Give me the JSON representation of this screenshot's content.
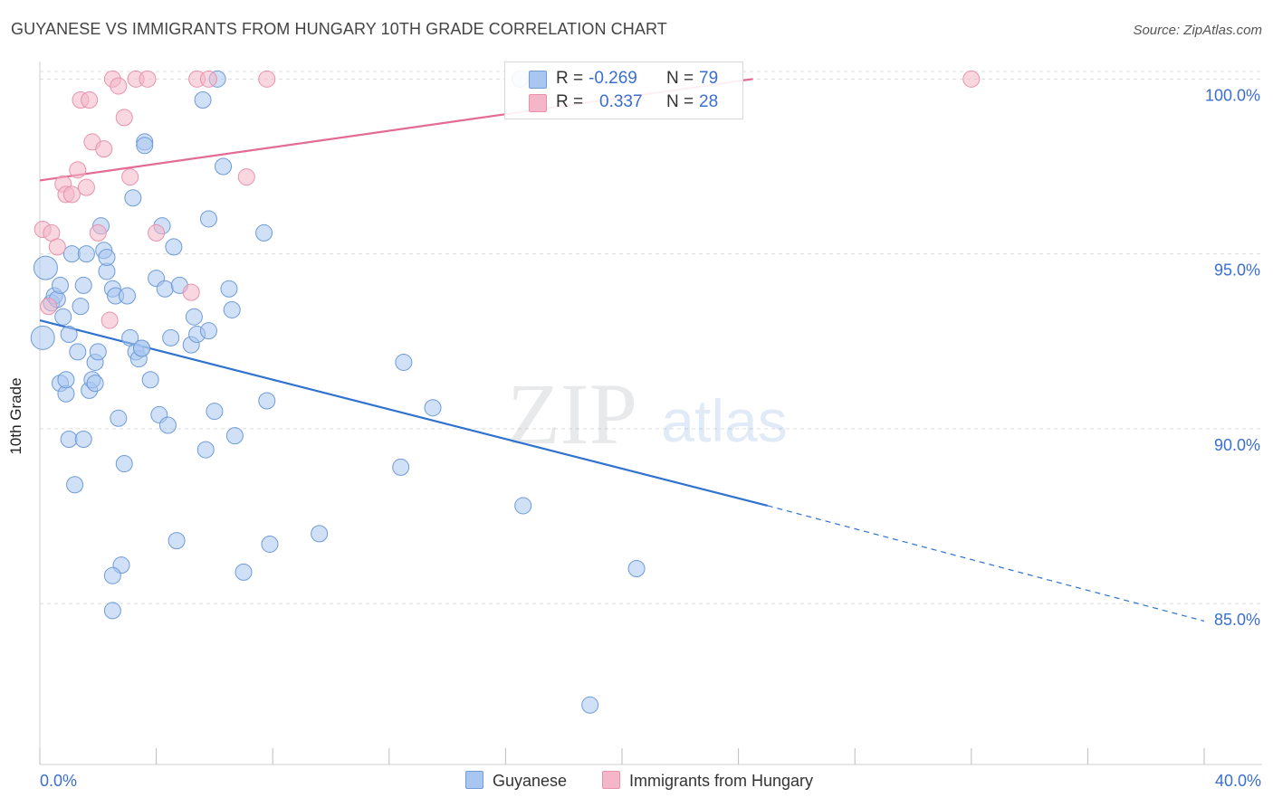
{
  "header": {
    "title": "GUYANESE VS IMMIGRANTS FROM HUNGARY 10TH GRADE CORRELATION CHART",
    "source": "Source: ZipAtlas.com"
  },
  "watermark": {
    "zip": "ZIP",
    "atlas": "atlas"
  },
  "legend": {
    "rows": [
      {
        "r_label": "R =",
        "r_value": "-0.269",
        "n_label": "N =",
        "n_value": "79",
        "color": "#a9c6f0"
      },
      {
        "r_label": "R =",
        "r_value": "0.337",
        "n_label": "N =",
        "n_value": "28",
        "color": "#f4b6c8"
      }
    ]
  },
  "bottom_legend": {
    "items": [
      {
        "label": "Guyanese",
        "color": "#a9c6f0"
      },
      {
        "label": "Immigrants from Hungary",
        "color": "#f4b6c8"
      }
    ]
  },
  "chart_data": {
    "type": "scatter",
    "title": "GUYANESE VS IMMIGRANTS FROM HUNGARY 10TH GRADE CORRELATION CHART",
    "xlabel": "",
    "ylabel": "10th Grade",
    "xlim": [
      0,
      40
    ],
    "ylim": [
      80.4,
      100.5
    ],
    "x_tick_labels": [
      "0.0%",
      "40.0%"
    ],
    "y_ticks": [
      85,
      90,
      95,
      100
    ],
    "y_tick_labels": [
      "85.0%",
      "90.0%",
      "95.0%",
      "100.0%"
    ],
    "grid": "horizontal dashed",
    "legend_position": "top-center",
    "series": [
      {
        "name": "Guyanese",
        "color": "#a9c6f0",
        "stroke": "#6f9bd8",
        "trend_color": "#2f72cf",
        "trend": {
          "x0": 0,
          "y0": 93.1,
          "x1": 25,
          "y1": 87.8,
          "dashed_to_x": 40,
          "dashed_to_y": 84.5
        },
        "points": [
          [
            0.1,
            92.6
          ],
          [
            0.2,
            94.6
          ],
          [
            0.4,
            93.6
          ],
          [
            0.5,
            93.8
          ],
          [
            0.6,
            93.7
          ],
          [
            0.7,
            94.1
          ],
          [
            0.8,
            93.2
          ],
          [
            0.7,
            91.3
          ],
          [
            0.9,
            91.0
          ],
          [
            0.9,
            91.4
          ],
          [
            1.0,
            92.7
          ],
          [
            1.0,
            89.7
          ],
          [
            1.1,
            95.0
          ],
          [
            1.2,
            88.4
          ],
          [
            1.3,
            92.2
          ],
          [
            1.4,
            93.5
          ],
          [
            1.5,
            94.1
          ],
          [
            1.5,
            89.7
          ],
          [
            1.6,
            95.0
          ],
          [
            1.7,
            91.1
          ],
          [
            1.8,
            91.4
          ],
          [
            1.9,
            91.3
          ],
          [
            1.9,
            91.9
          ],
          [
            2.0,
            92.2
          ],
          [
            2.1,
            95.8
          ],
          [
            2.2,
            95.1
          ],
          [
            2.3,
            94.5
          ],
          [
            2.3,
            94.9
          ],
          [
            2.5,
            94.0
          ],
          [
            2.6,
            93.8
          ],
          [
            2.7,
            90.3
          ],
          [
            2.9,
            89.0
          ],
          [
            3.0,
            93.8
          ],
          [
            3.1,
            92.6
          ],
          [
            3.2,
            96.6
          ],
          [
            3.3,
            92.2
          ],
          [
            3.4,
            92.0
          ],
          [
            3.5,
            92.3
          ],
          [
            3.6,
            98.2
          ],
          [
            3.6,
            98.1
          ],
          [
            3.8,
            91.4
          ],
          [
            4.0,
            94.3
          ],
          [
            4.1,
            90.4
          ],
          [
            4.2,
            95.8
          ],
          [
            4.3,
            94.0
          ],
          [
            4.4,
            90.1
          ],
          [
            4.5,
            92.6
          ],
          [
            4.6,
            95.2
          ],
          [
            4.7,
            86.8
          ],
          [
            4.8,
            94.1
          ],
          [
            5.2,
            92.4
          ],
          [
            5.3,
            93.2
          ],
          [
            5.4,
            92.7
          ],
          [
            5.6,
            99.4
          ],
          [
            5.7,
            89.4
          ],
          [
            5.8,
            92.8
          ],
          [
            5.8,
            96.0
          ],
          [
            6.0,
            90.5
          ],
          [
            6.1,
            100.0
          ],
          [
            6.3,
            97.5
          ],
          [
            6.5,
            94.0
          ],
          [
            6.6,
            93.4
          ],
          [
            6.7,
            89.8
          ],
          [
            7.0,
            85.9
          ],
          [
            7.7,
            95.6
          ],
          [
            7.8,
            90.8
          ],
          [
            7.9,
            86.7
          ],
          [
            9.6,
            87.0
          ],
          [
            12.5,
            91.9
          ],
          [
            12.4,
            88.9
          ],
          [
            13.5,
            90.6
          ],
          [
            16.5,
            100.0
          ],
          [
            16.6,
            87.8
          ],
          [
            18.9,
            82.1
          ],
          [
            20.5,
            86.0
          ],
          [
            2.8,
            86.1
          ],
          [
            2.5,
            84.8
          ],
          [
            2.5,
            85.8
          ],
          [
            3.5,
            92.3
          ]
        ]
      },
      {
        "name": "Immigrants from Hungary",
        "color": "#f4b6c8",
        "stroke": "#e892ad",
        "trend_color": "#e46b95",
        "trend": {
          "x0": 0,
          "y0": 97.1,
          "x1": 24.5,
          "y1": 100.0
        },
        "points": [
          [
            0.1,
            95.7
          ],
          [
            0.3,
            93.5
          ],
          [
            0.4,
            95.6
          ],
          [
            0.6,
            95.2
          ],
          [
            0.8,
            97.0
          ],
          [
            0.9,
            96.7
          ],
          [
            1.1,
            96.7
          ],
          [
            1.3,
            97.4
          ],
          [
            1.4,
            99.4
          ],
          [
            1.6,
            96.9
          ],
          [
            1.7,
            99.4
          ],
          [
            1.8,
            98.2
          ],
          [
            2.0,
            95.6
          ],
          [
            2.2,
            98.0
          ],
          [
            2.4,
            93.1
          ],
          [
            2.5,
            100.0
          ],
          [
            2.7,
            99.8
          ],
          [
            2.9,
            98.9
          ],
          [
            3.1,
            97.2
          ],
          [
            3.3,
            100.0
          ],
          [
            3.7,
            100.0
          ],
          [
            4.0,
            95.6
          ],
          [
            5.2,
            93.9
          ],
          [
            5.4,
            100.0
          ],
          [
            5.8,
            100.0
          ],
          [
            7.1,
            97.2
          ],
          [
            7.8,
            100.0
          ],
          [
            32.0,
            100.0
          ]
        ]
      }
    ]
  }
}
